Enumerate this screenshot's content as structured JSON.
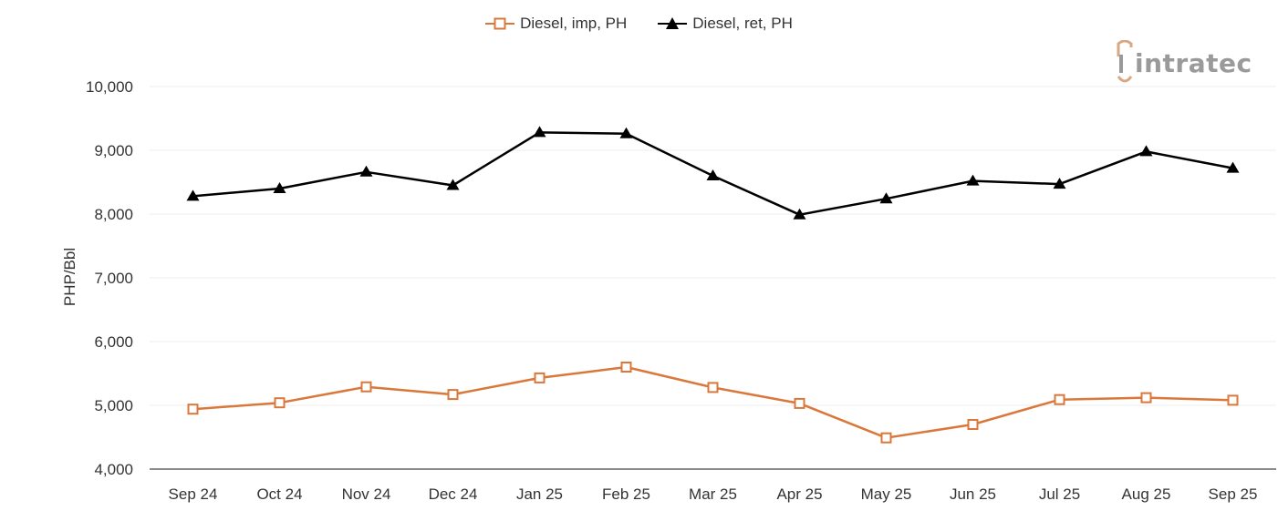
{
  "legend": {
    "series1": "Diesel, imp, PH",
    "series2": "Diesel, ret, PH"
  },
  "logo": {
    "text": "intratec"
  },
  "chart_data": {
    "type": "line",
    "title": "",
    "xlabel": "",
    "ylabel": "PHP/Bbl",
    "ylim": [
      4000,
      10000
    ],
    "yticks": [
      4000,
      5000,
      6000,
      7000,
      8000,
      9000,
      10000
    ],
    "ytick_labels": [
      "4,000",
      "5,000",
      "6,000",
      "7,000",
      "8,000",
      "9,000",
      "10,000"
    ],
    "grid": true,
    "legend_position": "top-center",
    "categories": [
      "Sep 24",
      "Oct 24",
      "Nov 24",
      "Dec 24",
      "Jan 25",
      "Feb 25",
      "Mar 25",
      "Apr 25",
      "May 25",
      "Jun 25",
      "Jul 25",
      "Aug 25",
      "Sep 25"
    ],
    "series": [
      {
        "name": "Diesel, imp, PH",
        "color": "#d9783a",
        "marker": "open-square",
        "values": [
          4940,
          5040,
          5290,
          5170,
          5430,
          5600,
          5280,
          5030,
          4490,
          4700,
          5090,
          5120,
          5080
        ]
      },
      {
        "name": "Diesel, ret, PH",
        "color": "#000000",
        "marker": "filled-triangle",
        "values": [
          8280,
          8400,
          8660,
          8450,
          9280,
          9260,
          8600,
          7990,
          8240,
          8520,
          8470,
          8980,
          8720
        ]
      }
    ]
  }
}
